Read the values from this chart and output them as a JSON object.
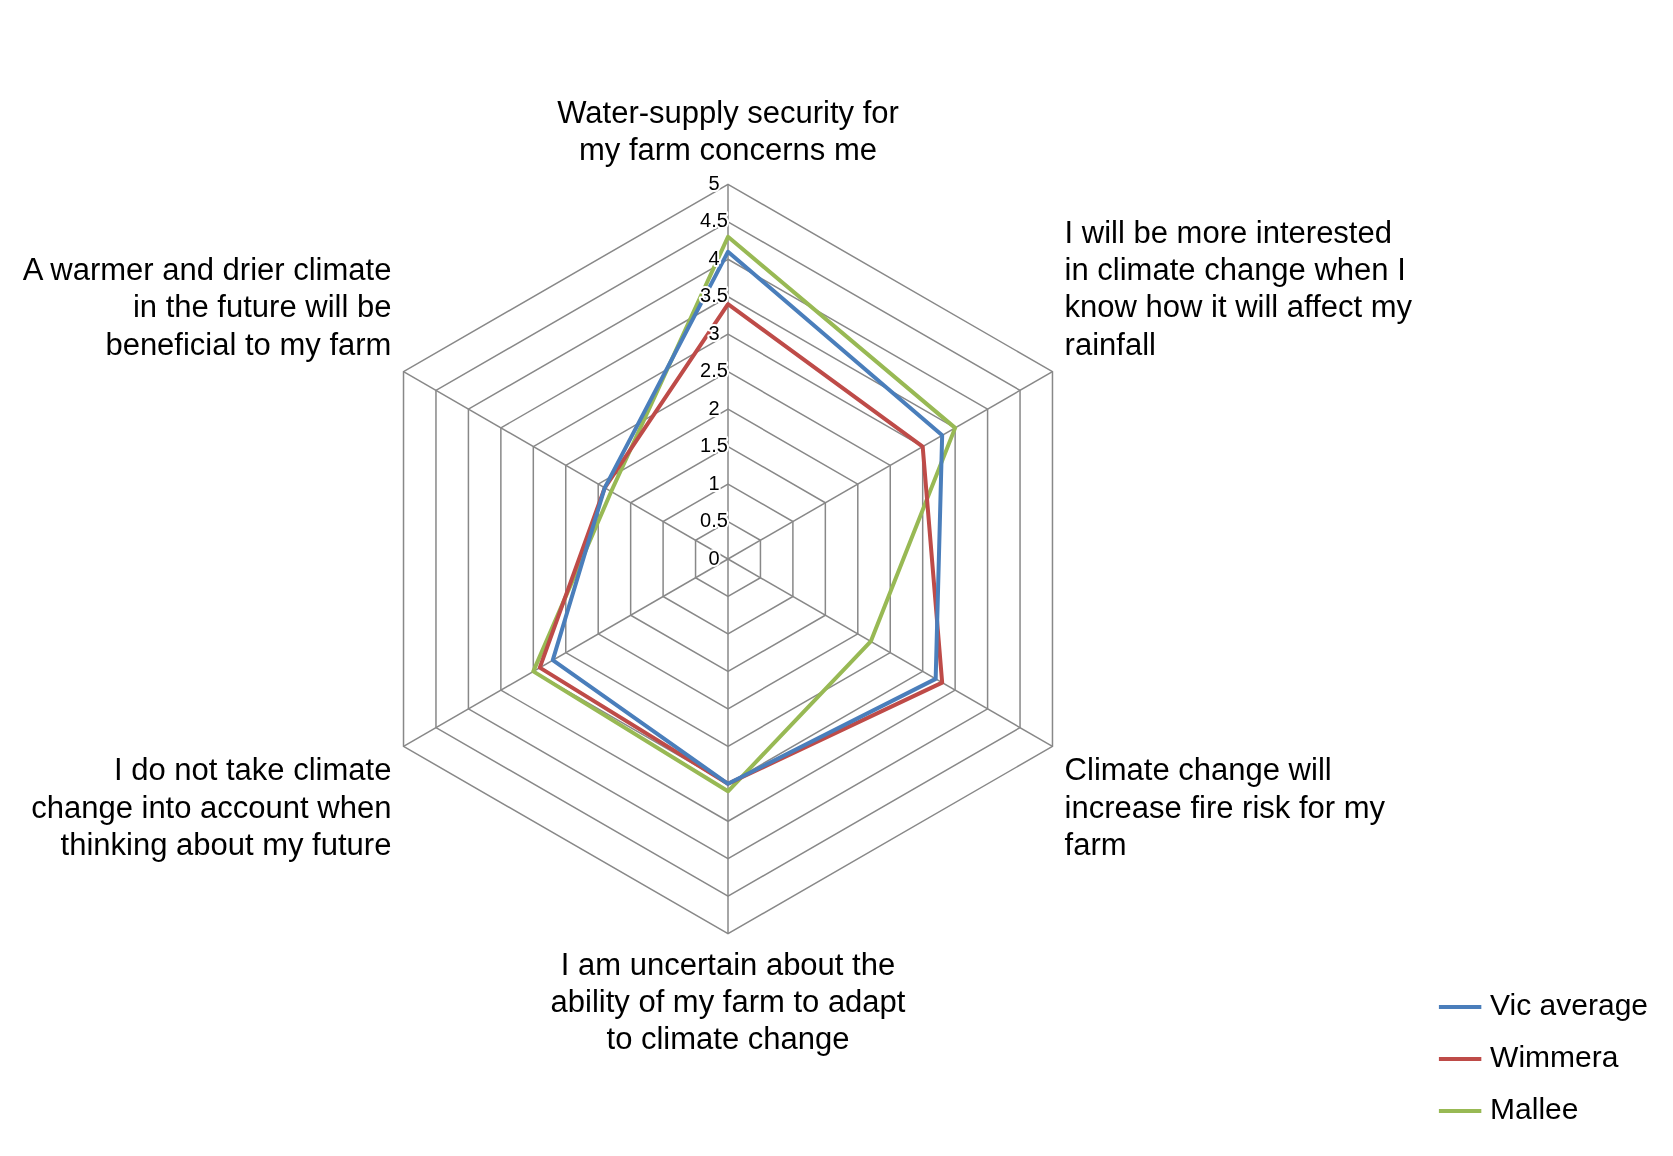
{
  "chart_data": {
    "type": "radar",
    "categories": [
      "Water-supply security for my farm concerns me",
      "I will be more interested in climate change when I know how it will affect my rainfall",
      "Climate change will increase fire risk for my farm",
      "I am uncertain about the ability of my farm to adapt to climate change",
      "I do not take climate change into account when thinking about my future",
      "A warmer and drier climate in the future will be beneficial to my farm"
    ],
    "series": [
      {
        "name": "Vic average",
        "color": "#4a7ebb",
        "values": [
          4.1,
          3.3,
          3.2,
          3.0,
          2.7,
          1.9
        ]
      },
      {
        "name": "Wimmera",
        "color": "#be4b48",
        "values": [
          3.4,
          3.0,
          3.3,
          3.0,
          2.9,
          1.9
        ]
      },
      {
        "name": "Mallee",
        "color": "#98b954",
        "values": [
          4.3,
          3.5,
          2.2,
          3.1,
          3.0,
          1.8
        ]
      }
    ],
    "ylim": [
      0,
      5
    ],
    "yticks": [
      0,
      0.5,
      1,
      1.5,
      2,
      2.5,
      3,
      3.5,
      4,
      4.5,
      5
    ],
    "grid": true,
    "legend": "bottom right",
    "marker": "none",
    "line_style": "solid"
  }
}
